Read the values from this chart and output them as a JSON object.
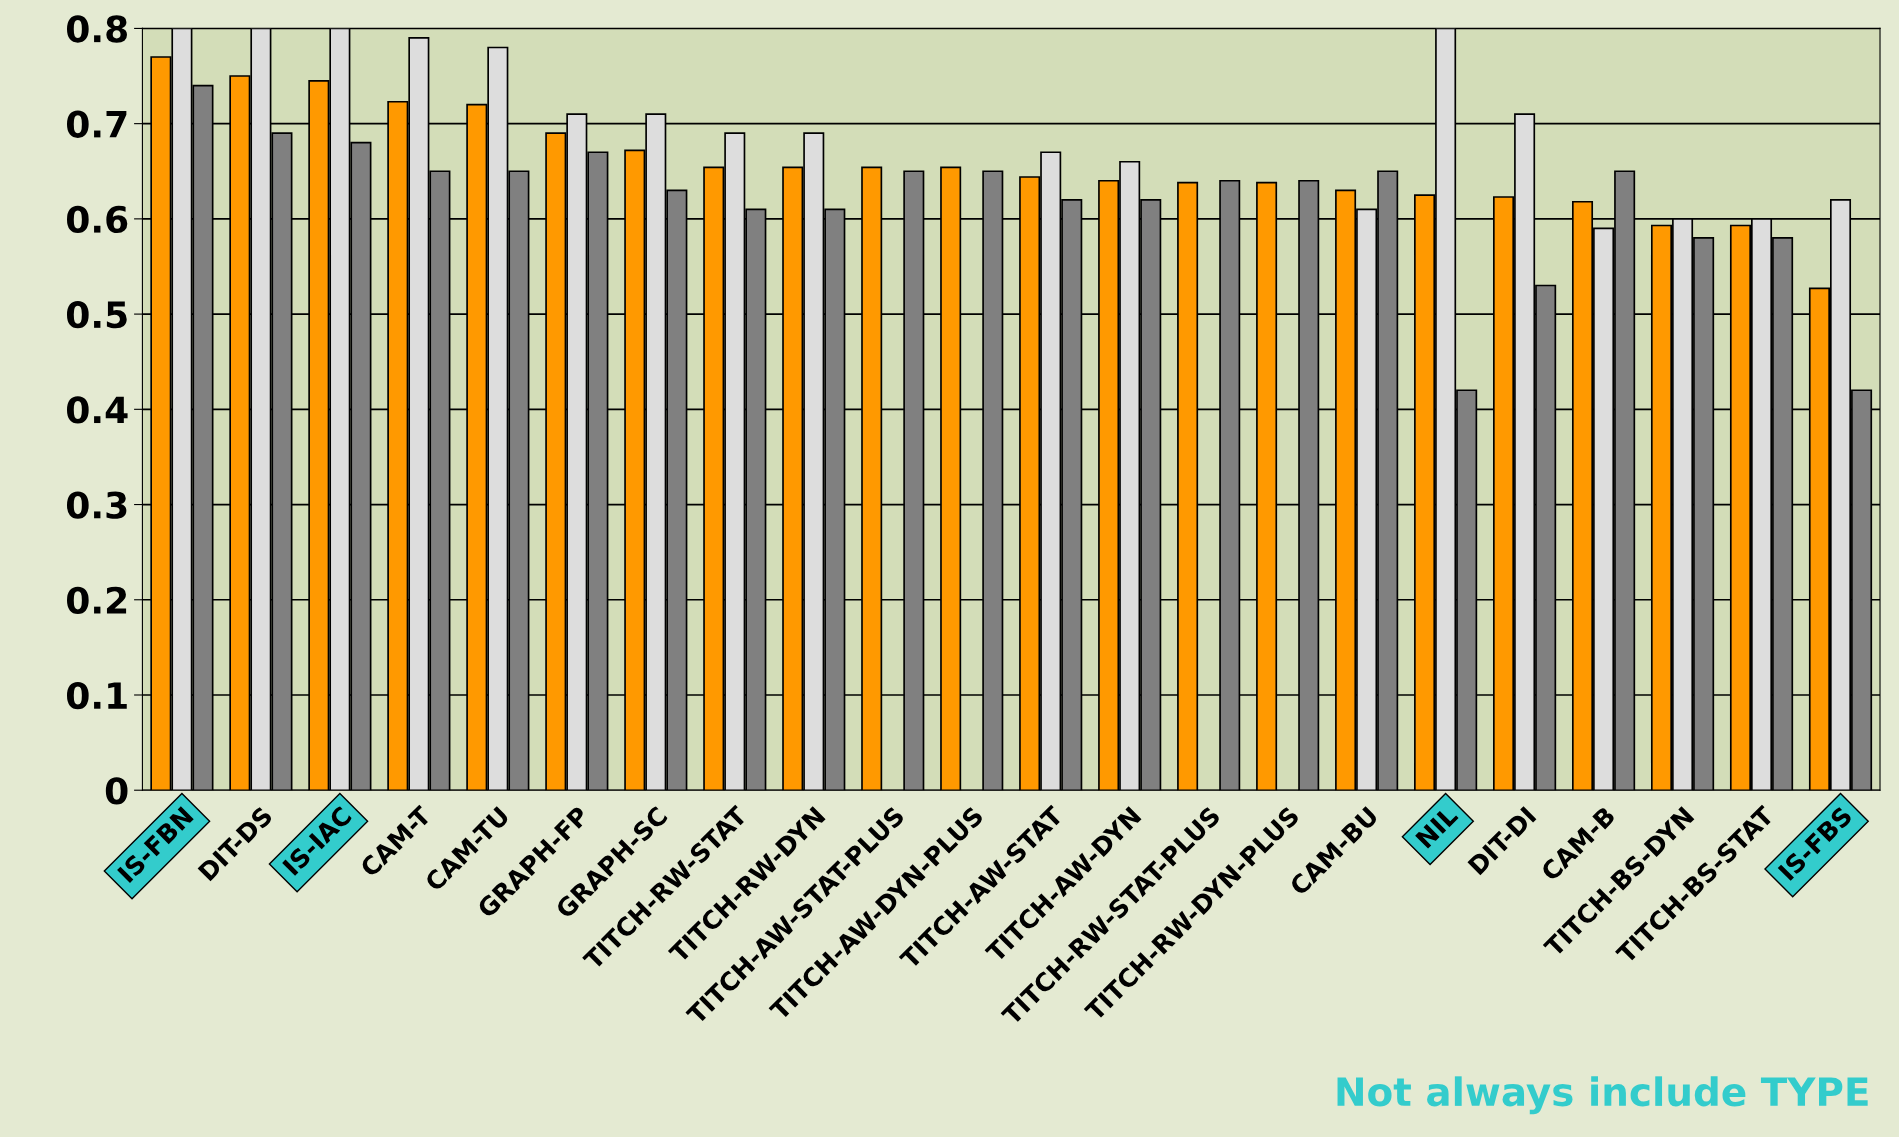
{
  "chart_data": {
    "type": "bar",
    "categories": [
      "IS-FBN",
      "DIT-DS",
      "IS-IAC",
      "CAM-T",
      "CAM-TU",
      "GRAPH-FP",
      "GRAPH-SC",
      "TITCH-RW-STAT",
      "TITCH-RW-DYN",
      "TITCH-AW-STAT-PLUS",
      "TITCH-AW-DYN-PLUS",
      "TITCH-AW-STAT",
      "TITCH-AW-DYN",
      "TITCH-RW-STAT-PLUS",
      "TITCH-RW-DYN-PLUS",
      "CAM-BU",
      "NIL",
      "DIT-DI",
      "CAM-B",
      "TITCH-BS-DYN",
      "TITCH-BS-STAT",
      "IS-FBS"
    ],
    "series": [
      {
        "color": "#ff9900",
        "values": [
          0.77,
          0.75,
          0.745,
          0.723,
          0.72,
          0.69,
          0.672,
          0.654,
          0.654,
          0.654,
          0.654,
          0.644,
          0.64,
          0.638,
          0.638,
          0.63,
          0.625,
          0.623,
          0.618,
          0.593,
          0.593,
          0.527
        ]
      },
      {
        "color": "#dddddd",
        "values": [
          0.8,
          0.8,
          0.8,
          0.79,
          0.78,
          0.71,
          0.71,
          0.69,
          0.69,
          null,
          null,
          0.67,
          0.66,
          null,
          null,
          0.61,
          0.8,
          0.71,
          0.59,
          0.6,
          0.6,
          0.62
        ]
      },
      {
        "color": "#808080",
        "values": [
          0.74,
          0.69,
          0.68,
          0.65,
          0.65,
          0.67,
          0.63,
          0.61,
          0.61,
          0.65,
          0.65,
          0.62,
          0.62,
          0.64,
          0.64,
          0.65,
          0.42,
          0.53,
          0.65,
          0.58,
          0.58,
          0.42
        ]
      }
    ],
    "ylim": [
      0,
      0.8
    ],
    "yticks": [
      {
        "value": 0,
        "label": "0"
      },
      {
        "value": 0.1,
        "label": "0.1"
      },
      {
        "value": 0.2,
        "label": "0.2"
      },
      {
        "value": 0.3,
        "label": "0.3"
      },
      {
        "value": 0.4,
        "label": "0.4"
      },
      {
        "value": 0.5,
        "label": "0.5"
      },
      {
        "value": 0.6,
        "label": "0.6"
      },
      {
        "value": 0.7,
        "label": "0.7"
      },
      {
        "value": 0.8,
        "label": "0.8"
      }
    ],
    "grid": "y",
    "legend": false,
    "annotations": [
      "Not always include TYPE"
    ]
  }
}
